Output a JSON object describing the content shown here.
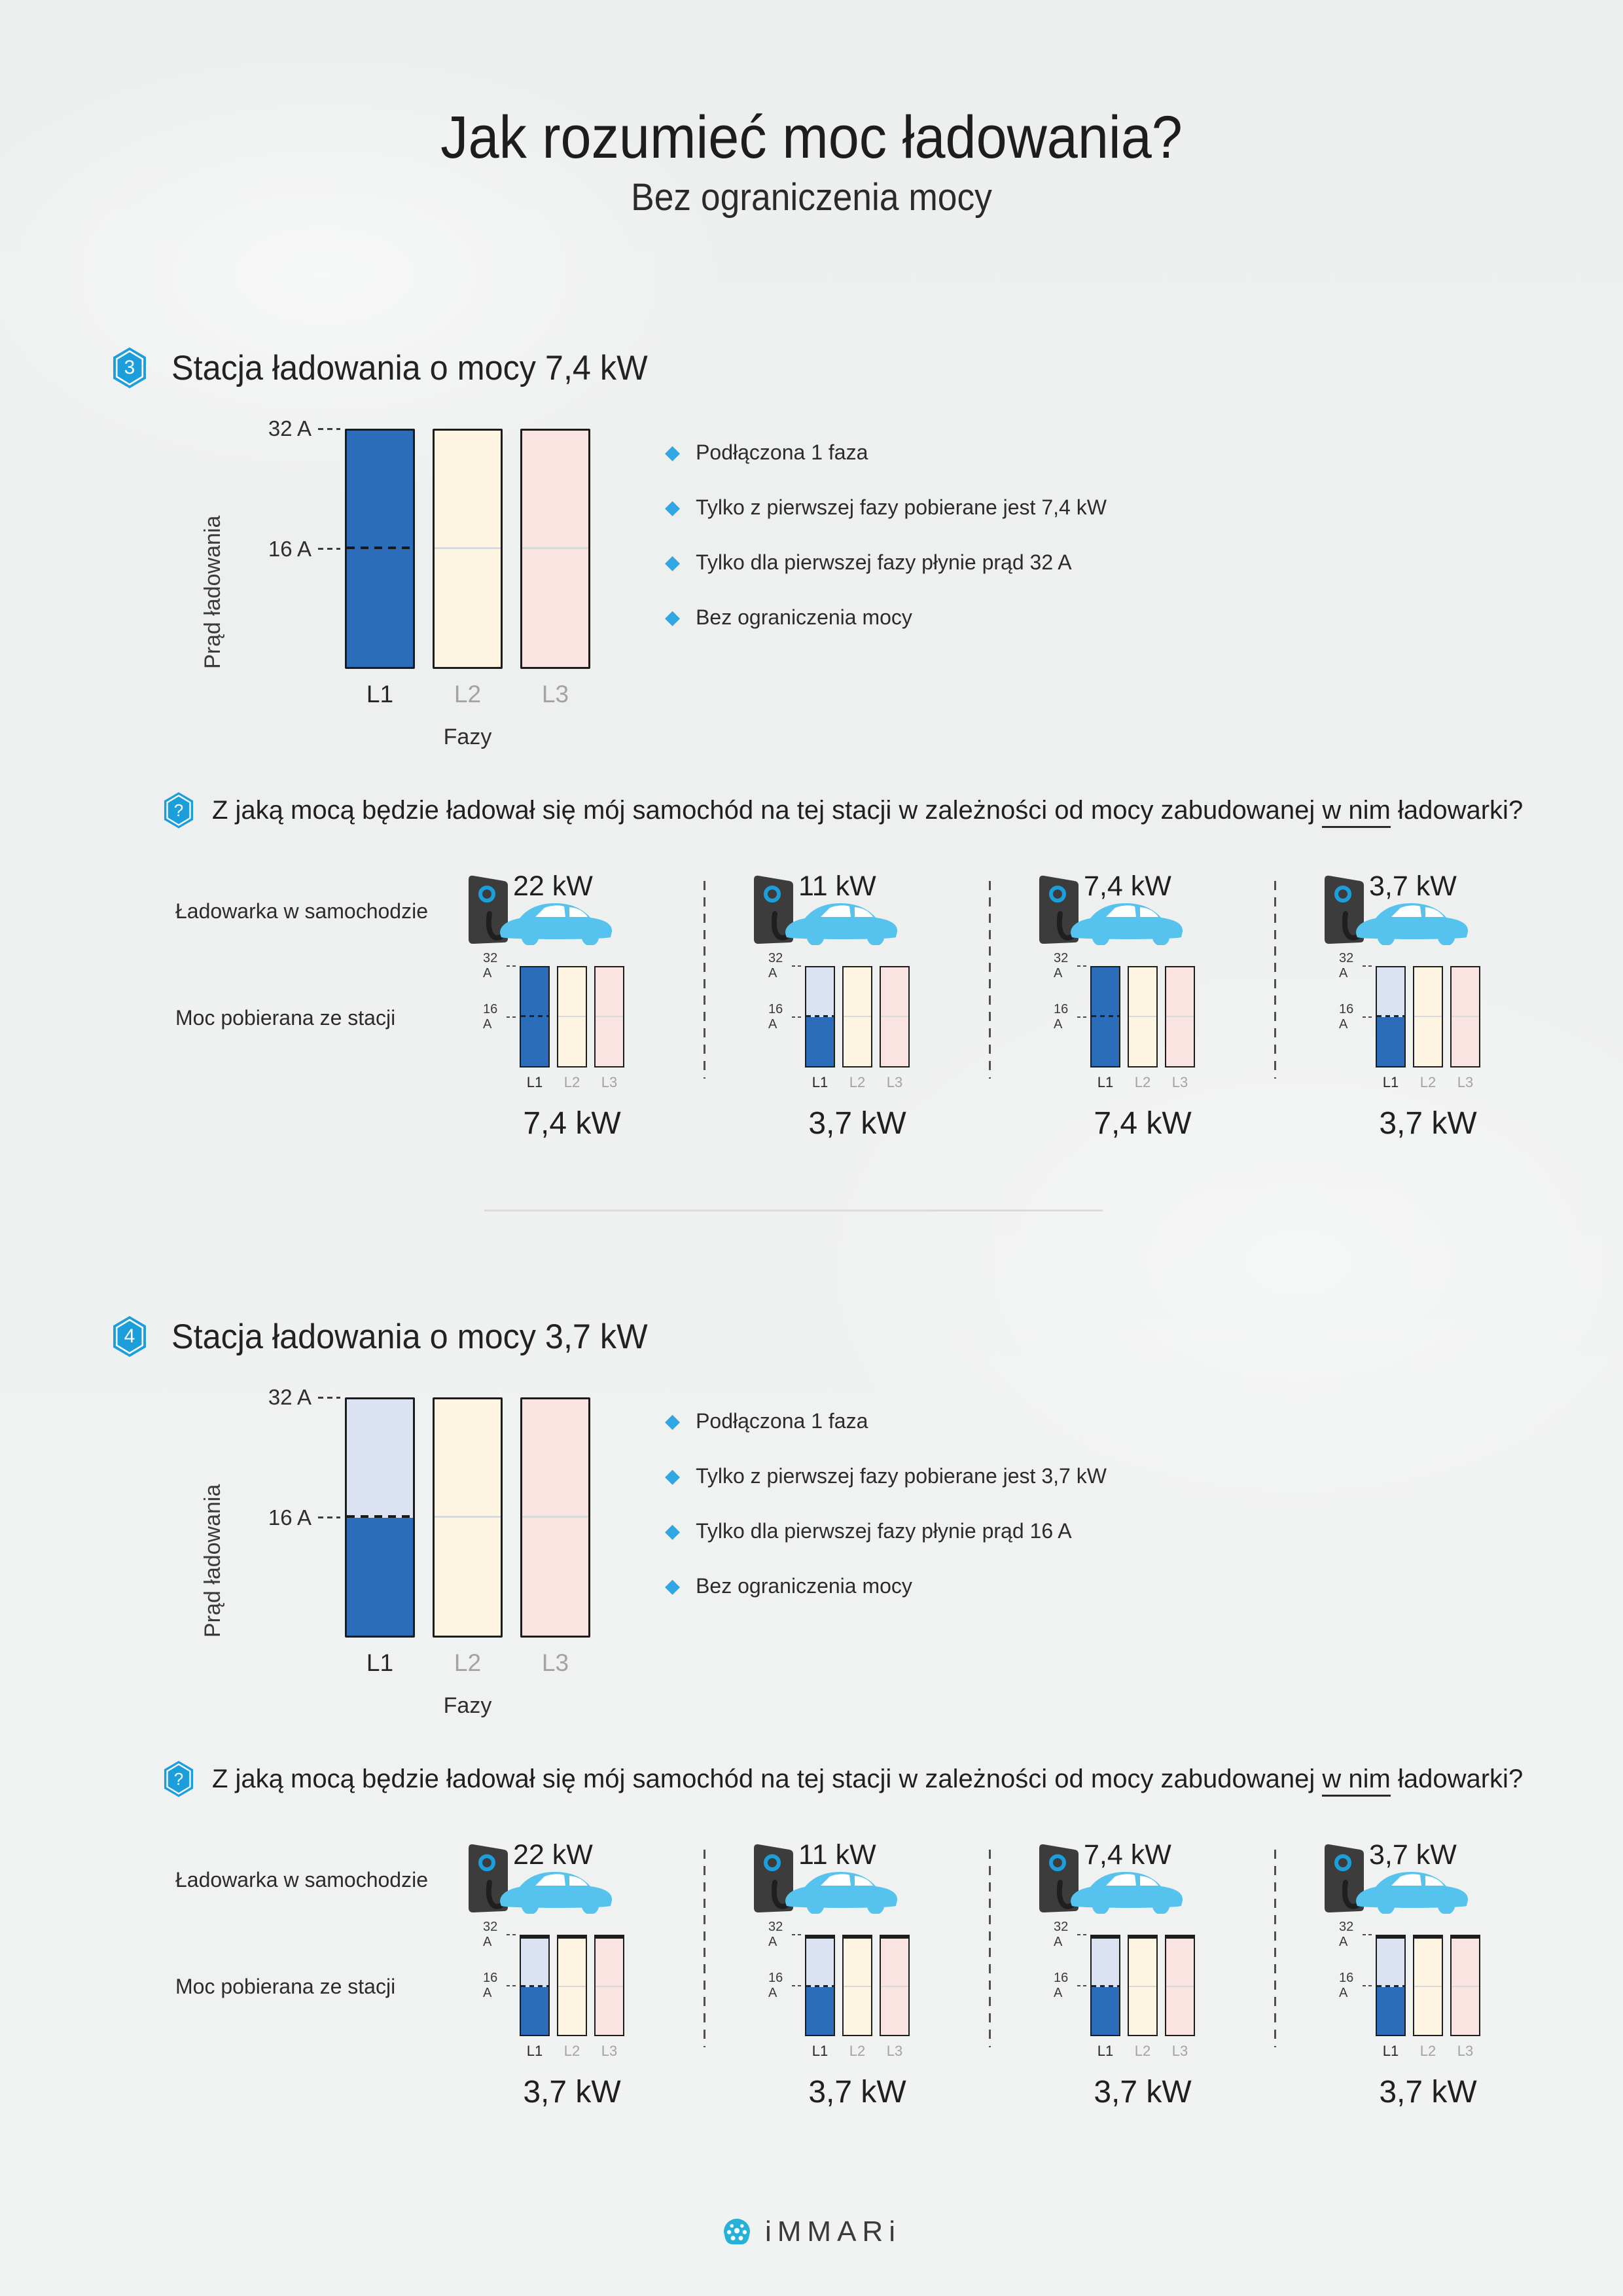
{
  "page": {
    "title": "Jak rozumieć moc ładowania?",
    "subtitle": "Bez ograniczenia mocy"
  },
  "labels": {
    "y_axis": "Prąd ładowania",
    "x_axis": "Fazy",
    "tick_32": "32 A",
    "tick_16": "16 A",
    "phases": [
      "L1",
      "L2",
      "L3"
    ],
    "q_mark": "?",
    "question_pre": "Z jaką mocą będzie ładował się mój samochód na tej stacji w zależności od mocy zabudowanej ",
    "question_u": "w nim",
    "question_post": " ładowarki?",
    "charger_row": "Ładowarka w samochodzie",
    "power_row": "Moc pobierana ze stacji"
  },
  "sections": [
    {
      "number": "3",
      "heading": "Stacja ładowania o mocy 7,4 kW",
      "bullets": [
        "Podłączona 1 faza",
        "Tylko z pierwszej fazy pobierane jest 7,4 kW",
        "Tylko dla pierwszej fazy płynie prąd 32 A",
        "Bez ograniczenia mocy"
      ],
      "station_l1_amps": 32,
      "groups": [
        {
          "charger_kw": "22 kW",
          "l1_amps": 32,
          "result_kw": "7,4 kW"
        },
        {
          "charger_kw": "11 kW",
          "l1_amps": 16,
          "result_kw": "3,7 kW"
        },
        {
          "charger_kw": "7,4 kW",
          "l1_amps": 32,
          "result_kw": "7,4 kW"
        },
        {
          "charger_kw": "3,7 kW",
          "l1_amps": 16,
          "result_kw": "3,7 kW"
        }
      ]
    },
    {
      "number": "4",
      "heading": "Stacja ładowania o mocy 3,7 kW",
      "bullets": [
        "Podłączona 1 faza",
        "Tylko z pierwszej fazy pobierane jest 3,7 kW",
        "Tylko dla pierwszej fazy płynie prąd 16 A",
        "Bez ograniczenia mocy"
      ],
      "station_l1_amps": 16,
      "groups": [
        {
          "charger_kw": "22 kW",
          "l1_amps": 16,
          "result_kw": "3,7 kW"
        },
        {
          "charger_kw": "11 kW",
          "l1_amps": 16,
          "result_kw": "3,7 kW"
        },
        {
          "charger_kw": "7,4 kW",
          "l1_amps": 16,
          "result_kw": "3,7 kW"
        },
        {
          "charger_kw": "3,7 kW",
          "l1_amps": 16,
          "result_kw": "3,7 kW"
        }
      ]
    }
  ],
  "footer": {
    "brand": "iMMARi"
  },
  "colors": {
    "accent": "#1b9ed9",
    "diamond": "#2ea7e4",
    "bar_blue": "#2b6db8",
    "bar_blue_light": "#dbe3f3",
    "bar_cream": "#fdf4e2",
    "bar_pink": "#fae4e1",
    "car_blue": "#55c3ee",
    "station_gray": "#3c3c3c",
    "background": "#eef0f0"
  },
  "chart_data": {
    "type": "bar",
    "unit": "A",
    "categories": [
      "L1",
      "L2",
      "L3"
    ],
    "ylim": [
      0,
      32
    ],
    "yticks": [
      16,
      32
    ],
    "ylabel": "Prąd ładowania",
    "xlabel": "Fazy",
    "charts": [
      {
        "title": "Stacja ładowania o mocy 7,4 kW — prąd na fazach",
        "values": [
          32,
          0,
          0
        ]
      },
      {
        "title": "Stacja 7,4 kW + ładowarka 22 kW — moc pobierana ze stacji",
        "values": [
          32,
          0,
          0
        ],
        "result": "7,4 kW"
      },
      {
        "title": "Stacja 7,4 kW + ładowarka 11 kW — moc pobierana ze stacji",
        "values": [
          16,
          0,
          0
        ],
        "result": "3,7 kW"
      },
      {
        "title": "Stacja 7,4 kW + ładowarka 7,4 kW — moc pobierana ze stacji",
        "values": [
          32,
          0,
          0
        ],
        "result": "7,4 kW"
      },
      {
        "title": "Stacja 7,4 kW + ładowarka 3,7 kW — moc pobierana ze stacji",
        "values": [
          16,
          0,
          0
        ],
        "result": "3,7 kW"
      },
      {
        "title": "Stacja ładowania o mocy 3,7 kW — prąd na fazach",
        "values": [
          16,
          0,
          0
        ]
      },
      {
        "title": "Stacja 3,7 kW + ładowarka 22 kW — moc pobierana ze stacji",
        "values": [
          16,
          0,
          0
        ],
        "result": "3,7 kW"
      },
      {
        "title": "Stacja 3,7 kW + ładowarka 11 kW — moc pobierana ze stacji",
        "values": [
          16,
          0,
          0
        ],
        "result": "3,7 kW"
      },
      {
        "title": "Stacja 3,7 kW + ładowarka 7,4 kW — moc pobierana ze stacji",
        "values": [
          16,
          0,
          0
        ],
        "result": "3,7 kW"
      },
      {
        "title": "Stacja 3,7 kW + ładowarka 3,7 kW — moc pobierana ze stacji",
        "values": [
          16,
          0,
          0
        ],
        "result": "3,7 kW"
      }
    ]
  }
}
